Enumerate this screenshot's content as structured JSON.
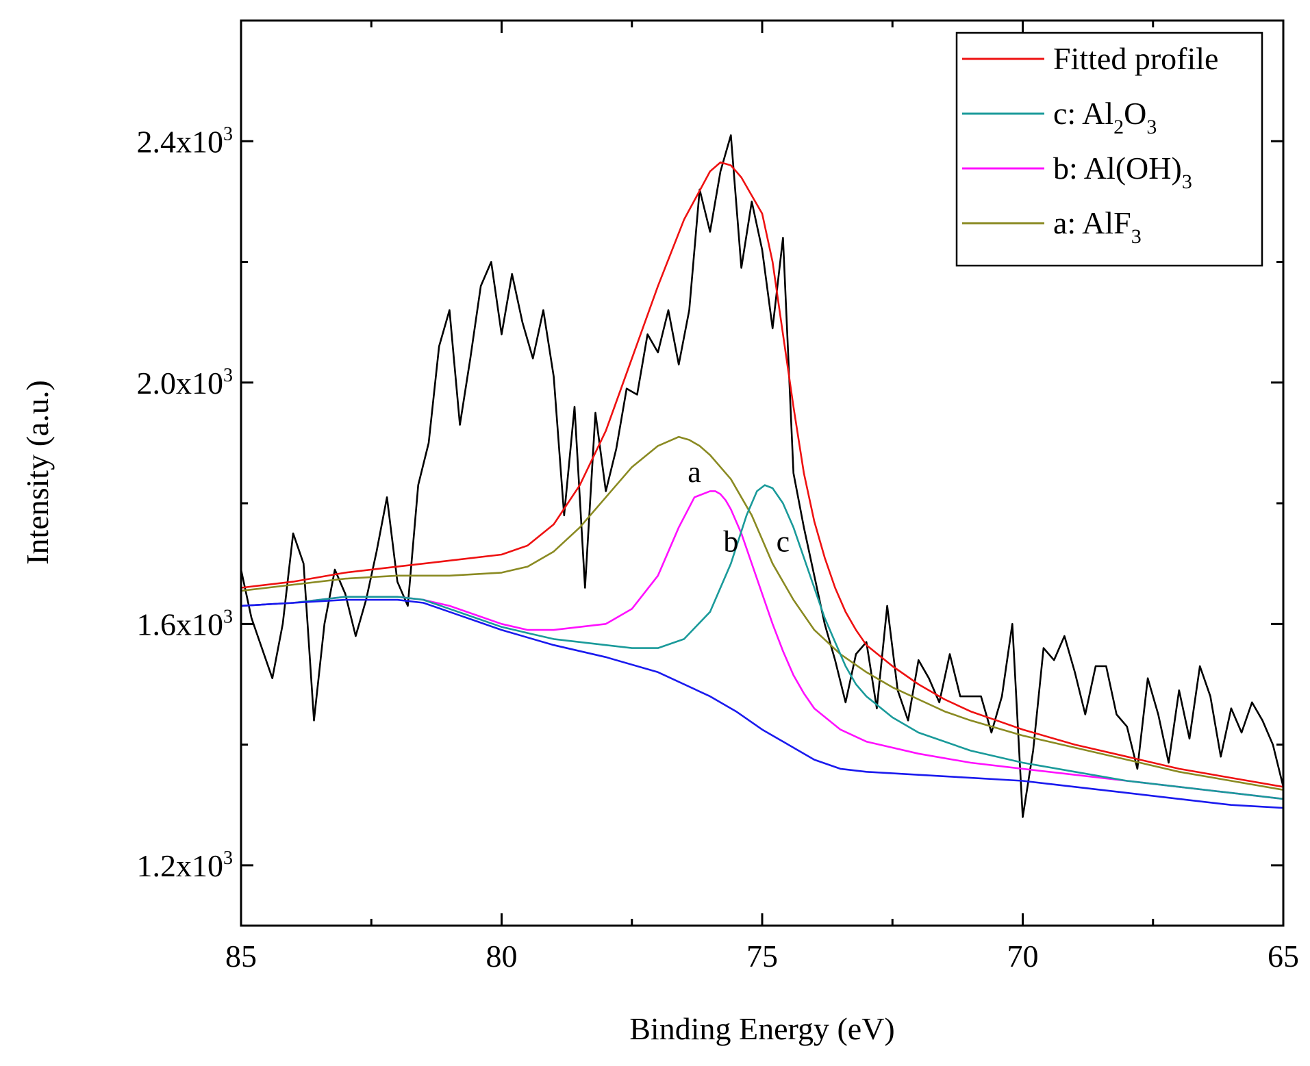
{
  "chart_data": {
    "type": "line",
    "xlabel": "Binding Energy (eV)",
    "ylabel": "Intensity (a.u.)",
    "xlim": [
      85,
      65
    ],
    "ylim": [
      1100,
      2600
    ],
    "x_reversed": true,
    "x_ticks": [
      85,
      80,
      75,
      70,
      65
    ],
    "x_tick_labels": [
      "85",
      "80",
      "75",
      "70",
      "65"
    ],
    "y_ticks": [
      1200,
      1600,
      2000,
      2400
    ],
    "y_tick_labels": [
      {
        "mantissa": "1.2x10",
        "exp": "3"
      },
      {
        "mantissa": "1.6x10",
        "exp": "3"
      },
      {
        "mantissa": "2.0x10",
        "exp": "3"
      },
      {
        "mantissa": "2.4x10",
        "exp": "3"
      }
    ],
    "grid": false,
    "legend_position": "top-right",
    "legend": [
      {
        "series": "fitted",
        "text": "Fitted profile",
        "sub": "",
        "tail": "",
        "sub2": ""
      },
      {
        "series": "c",
        "text": "c: Al",
        "sub": "2",
        "tail": "O",
        "sub2": "3"
      },
      {
        "series": "b",
        "text": "b: Al(OH)",
        "sub": "3",
        "tail": "",
        "sub2": ""
      },
      {
        "series": "a",
        "text": "a: AlF",
        "sub": "3",
        "tail": "",
        "sub2": ""
      }
    ],
    "annotations": [
      {
        "text": "a",
        "x": 76.3,
        "y": 1835
      },
      {
        "text": "b",
        "x": 75.6,
        "y": 1720
      },
      {
        "text": "c",
        "x": 74.6,
        "y": 1720
      }
    ],
    "series": [
      {
        "key": "raw",
        "color": "#000000",
        "x": [
          85.0,
          84.8,
          84.6,
          84.4,
          84.2,
          84.0,
          83.8,
          83.6,
          83.4,
          83.2,
          83.0,
          82.8,
          82.6,
          82.4,
          82.2,
          82.0,
          81.8,
          81.6,
          81.4,
          81.2,
          81.0,
          80.8,
          80.6,
          80.4,
          80.2,
          80.0,
          79.8,
          79.6,
          79.4,
          79.2,
          79.0,
          78.8,
          78.6,
          78.4,
          78.2,
          78.0,
          77.8,
          77.6,
          77.4,
          77.2,
          77.0,
          76.8,
          76.6,
          76.4,
          76.2,
          76.0,
          75.8,
          75.6,
          75.4,
          75.2,
          75.0,
          74.8,
          74.6,
          74.4,
          74.2,
          74.0,
          73.8,
          73.6,
          73.4,
          73.2,
          73.0,
          72.8,
          72.6,
          72.4,
          72.2,
          72.0,
          71.8,
          71.6,
          71.4,
          71.2,
          71.0,
          70.8,
          70.6,
          70.4,
          70.2,
          70.0,
          69.8,
          69.6,
          69.4,
          69.2,
          69.0,
          68.8,
          68.6,
          68.4,
          68.2,
          68.0,
          67.8,
          67.6,
          67.4,
          67.2,
          67.0,
          66.8,
          66.6,
          66.4,
          66.2,
          66.0,
          65.8,
          65.6,
          65.4,
          65.2,
          65.0
        ],
        "y": [
          1690,
          1610,
          1560,
          1510,
          1600,
          1750,
          1700,
          1440,
          1600,
          1690,
          1650,
          1580,
          1640,
          1720,
          1810,
          1670,
          1630,
          1830,
          1900,
          2060,
          2120,
          1930,
          2040,
          2160,
          2200,
          2080,
          2180,
          2100,
          2040,
          2120,
          2010,
          1780,
          1960,
          1660,
          1950,
          1820,
          1890,
          1990,
          1980,
          2080,
          2050,
          2120,
          2030,
          2120,
          2320,
          2250,
          2350,
          2410,
          2190,
          2300,
          2220,
          2090,
          2240,
          1850,
          1760,
          1680,
          1600,
          1540,
          1470,
          1550,
          1570,
          1460,
          1630,
          1490,
          1440,
          1540,
          1510,
          1470,
          1550,
          1480,
          1480,
          1480,
          1420,
          1480,
          1600,
          1280,
          1390,
          1560,
          1540,
          1580,
          1520,
          1450,
          1530,
          1530,
          1450,
          1430,
          1360,
          1510,
          1450,
          1370,
          1490,
          1410,
          1530,
          1480,
          1380,
          1460,
          1420,
          1470,
          1440,
          1400,
          1330
        ]
      },
      {
        "key": "fitted",
        "color": "#ee1111",
        "x": [
          85.0,
          84.0,
          83.0,
          82.0,
          81.0,
          80.0,
          79.5,
          79.0,
          78.5,
          78.0,
          77.5,
          77.0,
          76.5,
          76.0,
          75.8,
          75.6,
          75.4,
          75.2,
          75.0,
          74.8,
          74.6,
          74.4,
          74.2,
          74.0,
          73.8,
          73.6,
          73.4,
          73.2,
          73.0,
          72.5,
          72.0,
          71.5,
          71.0,
          70.5,
          70.0,
          69.0,
          68.0,
          67.0,
          66.0,
          65.0
        ],
        "y": [
          1660,
          1670,
          1685,
          1695,
          1705,
          1715,
          1730,
          1765,
          1830,
          1920,
          2040,
          2160,
          2270,
          2350,
          2365,
          2360,
          2340,
          2310,
          2280,
          2200,
          2080,
          1960,
          1850,
          1770,
          1710,
          1660,
          1620,
          1590,
          1565,
          1530,
          1500,
          1475,
          1455,
          1440,
          1425,
          1400,
          1380,
          1360,
          1345,
          1330
        ]
      },
      {
        "key": "a",
        "color": "#8a8a22",
        "x": [
          85.0,
          84.0,
          83.0,
          82.0,
          81.0,
          80.0,
          79.5,
          79.0,
          78.5,
          78.0,
          77.5,
          77.0,
          76.6,
          76.4,
          76.2,
          76.0,
          75.8,
          75.6,
          75.4,
          75.2,
          75.0,
          74.8,
          74.6,
          74.4,
          74.2,
          74.0,
          73.5,
          73.0,
          72.5,
          72.0,
          71.5,
          71.0,
          70.0,
          69.0,
          68.0,
          67.0,
          66.0,
          65.0
        ],
        "y": [
          1655,
          1665,
          1675,
          1680,
          1680,
          1685,
          1695,
          1720,
          1760,
          1810,
          1860,
          1895,
          1910,
          1905,
          1895,
          1880,
          1860,
          1840,
          1810,
          1780,
          1740,
          1700,
          1670,
          1640,
          1615,
          1590,
          1550,
          1520,
          1495,
          1475,
          1455,
          1440,
          1415,
          1395,
          1375,
          1355,
          1340,
          1325
        ]
      },
      {
        "key": "b",
        "color": "#ff10ff",
        "x": [
          85.0,
          84.0,
          83.0,
          82.0,
          81.5,
          81.0,
          80.5,
          80.0,
          79.5,
          79.0,
          78.5,
          78.0,
          77.5,
          77.0,
          76.6,
          76.3,
          76.0,
          75.9,
          75.8,
          75.7,
          75.6,
          75.4,
          75.2,
          75.0,
          74.8,
          74.6,
          74.4,
          74.2,
          74.0,
          73.5,
          73.0,
          72.0,
          71.0,
          70.0,
          69.0,
          68.0,
          67.0,
          66.0,
          65.0
        ],
        "y": [
          1630,
          1635,
          1645,
          1645,
          1640,
          1630,
          1615,
          1600,
          1590,
          1590,
          1595,
          1600,
          1625,
          1680,
          1760,
          1810,
          1820,
          1820,
          1815,
          1805,
          1790,
          1750,
          1700,
          1650,
          1600,
          1555,
          1515,
          1485,
          1460,
          1425,
          1405,
          1385,
          1370,
          1360,
          1350,
          1340,
          1330,
          1320,
          1310
        ]
      },
      {
        "key": "c",
        "color": "#1a9a9a",
        "x": [
          85.0,
          84.0,
          83.0,
          82.0,
          81.5,
          81.0,
          80.5,
          80.0,
          79.5,
          79.0,
          78.5,
          78.0,
          77.5,
          77.0,
          76.5,
          76.0,
          75.6,
          75.3,
          75.1,
          74.95,
          74.8,
          74.6,
          74.4,
          74.2,
          74.0,
          73.8,
          73.6,
          73.4,
          73.2,
          73.0,
          72.5,
          72.0,
          71.0,
          70.0,
          69.0,
          68.0,
          67.0,
          66.0,
          65.0
        ],
        "y": [
          1630,
          1635,
          1645,
          1645,
          1640,
          1625,
          1610,
          1595,
          1585,
          1575,
          1570,
          1565,
          1560,
          1560,
          1575,
          1620,
          1700,
          1780,
          1820,
          1830,
          1825,
          1800,
          1760,
          1710,
          1660,
          1610,
          1570,
          1530,
          1500,
          1480,
          1445,
          1420,
          1390,
          1370,
          1355,
          1340,
          1330,
          1320,
          1310
        ]
      },
      {
        "key": "baseline",
        "color": "#1a1aee",
        "x": [
          85.0,
          84.0,
          83.0,
          82.0,
          81.5,
          81.0,
          80.5,
          80.0,
          79.0,
          78.0,
          77.0,
          76.0,
          75.5,
          75.0,
          74.5,
          74.0,
          73.5,
          73.0,
          72.0,
          71.0,
          70.0,
          69.0,
          68.0,
          67.0,
          66.0,
          65.0
        ],
        "y": [
          1630,
          1635,
          1640,
          1640,
          1635,
          1620,
          1605,
          1590,
          1565,
          1545,
          1520,
          1480,
          1455,
          1425,
          1400,
          1375,
          1360,
          1355,
          1350,
          1345,
          1340,
          1330,
          1320,
          1310,
          1300,
          1295
        ]
      }
    ]
  }
}
